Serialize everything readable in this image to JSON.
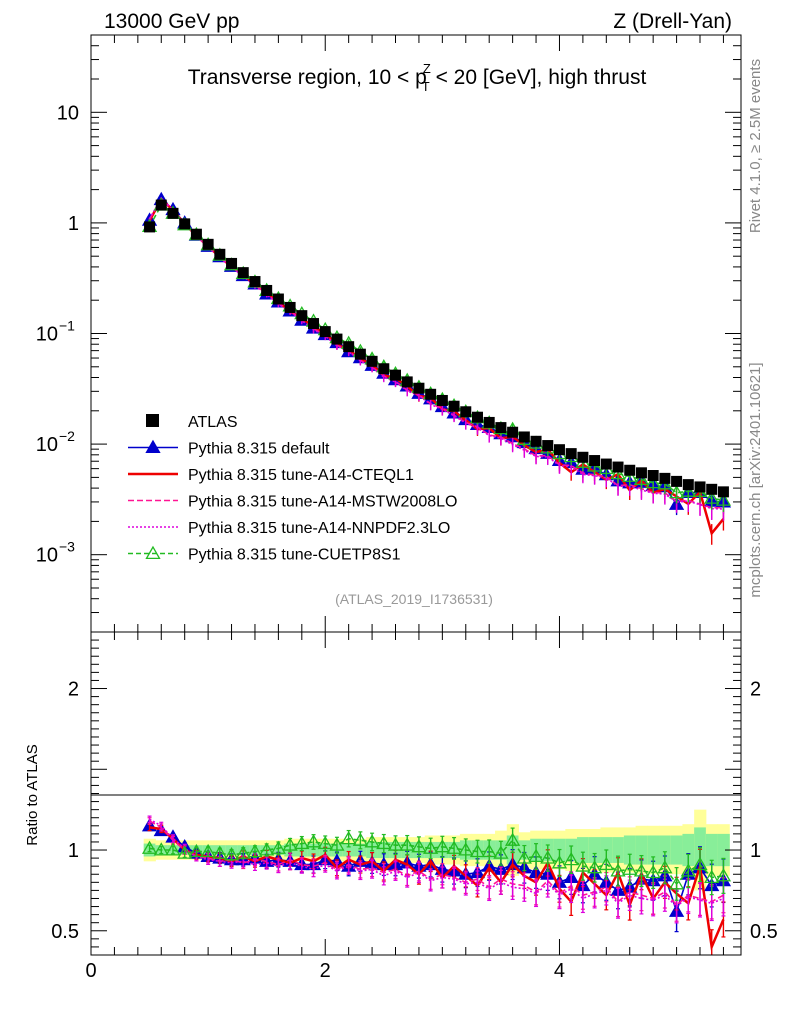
{
  "header": {
    "left": "13000 GeV pp",
    "right": "Z (Drell-Yan)"
  },
  "side_labels": {
    "rivet": "Rivet 4.1.0, ≥ 2.5M events",
    "mcplots": "mcplots.cern.ch [arXiv:2401.10621]"
  },
  "chart_data": [
    {
      "type": "scatter",
      "title": "Transverse region, 10 < p_T^Z < 20 [GeV], high thrust",
      "title_parts": {
        "pre": "Transverse region, 10 < p",
        "sup": "Z",
        "sub": "T",
        "post": " < 20 [GeV], high thrust"
      },
      "analysis_id": "(ATLAS_2019_I1736531)",
      "yscale": "log",
      "ylim": [
        0.0002,
        50
      ],
      "xlim": [
        0,
        5.55
      ],
      "ytick_labels": [
        {
          "value": 10,
          "label": "10"
        },
        {
          "value": 1,
          "label": "1"
        },
        {
          "value": 0.1,
          "base": "10",
          "exp": "−1"
        },
        {
          "value": 0.01,
          "base": "10",
          "exp": "−2"
        },
        {
          "value": 0.001,
          "base": "10",
          "exp": "−3"
        }
      ],
      "x": [
        0.5,
        0.6,
        0.7,
        0.8,
        0.9,
        1.0,
        1.1,
        1.2,
        1.3,
        1.4,
        1.5,
        1.6,
        1.7,
        1.8,
        1.9,
        2.0,
        2.1,
        2.2,
        2.3,
        2.4,
        2.5,
        2.6,
        2.7,
        2.8,
        2.9,
        3.0,
        3.1,
        3.2,
        3.3,
        3.4,
        3.5,
        3.6,
        3.7,
        3.8,
        3.9,
        4.0,
        4.1,
        4.2,
        4.3,
        4.4,
        4.5,
        4.6,
        4.7,
        4.8,
        4.9,
        5.0,
        5.1,
        5.2,
        5.3,
        5.4
      ],
      "legend": [
        "ATLAS",
        "Pythia 8.315 default",
        "Pythia 8.315 tune-A14-CTEQL1",
        "Pythia 8.315 tune-A14-MSTW2008LO",
        "Pythia 8.315 tune-A14-NNPDF2.3LO",
        "Pythia 8.315 tune-CUETP8S1"
      ],
      "data_series": {
        "name": "ATLAS",
        "values": [
          0.92,
          1.45,
          1.22,
          0.98,
          0.79,
          0.64,
          0.52,
          0.43,
          0.355,
          0.295,
          0.245,
          0.205,
          0.172,
          0.145,
          0.123,
          0.104,
          0.089,
          0.076,
          0.065,
          0.056,
          0.048,
          0.042,
          0.0365,
          0.032,
          0.0282,
          0.0248,
          0.022,
          0.0196,
          0.0175,
          0.0157,
          0.0141,
          0.0128,
          0.0116,
          0.0106,
          0.0097,
          0.0089,
          0.0082,
          0.0076,
          0.0071,
          0.0066,
          0.0062,
          0.0058,
          0.0055,
          0.0052,
          0.0049,
          0.0046,
          0.0043,
          0.0041,
          0.0039,
          0.0037
        ]
      }
    },
    {
      "type": "scatter",
      "ylabel": "Ratio to ATLAS",
      "xlabel": "",
      "ylim": [
        0.35,
        2.35
      ],
      "xlim": [
        0,
        5.55
      ],
      "ytick_labels": [
        {
          "value": 2,
          "label": "2"
        },
        {
          "value": 1,
          "label": "1"
        },
        {
          "value": 0.5,
          "label": "0.5"
        }
      ],
      "xtick_labels": [
        {
          "value": 0,
          "label": "0"
        },
        {
          "value": 2,
          "label": "2"
        },
        {
          "value": 4,
          "label": "4"
        }
      ],
      "x": [
        0.5,
        0.6,
        0.7,
        0.8,
        0.9,
        1.0,
        1.1,
        1.2,
        1.3,
        1.4,
        1.5,
        1.6,
        1.7,
        1.8,
        1.9,
        2.0,
        2.1,
        2.2,
        2.3,
        2.4,
        2.5,
        2.6,
        2.7,
        2.8,
        2.9,
        3.0,
        3.1,
        3.2,
        3.3,
        3.4,
        3.5,
        3.6,
        3.7,
        3.8,
        3.9,
        4.0,
        4.1,
        4.2,
        4.3,
        4.4,
        4.5,
        4.6,
        4.7,
        4.8,
        4.9,
        5.0,
        5.1,
        5.2,
        5.3,
        5.4
      ],
      "band_stat": [
        0.04,
        0.03,
        0.03,
        0.03,
        0.03,
        0.03,
        0.03,
        0.03,
        0.03,
        0.03,
        0.03,
        0.03,
        0.04,
        0.04,
        0.04,
        0.04,
        0.04,
        0.04,
        0.04,
        0.05,
        0.05,
        0.05,
        0.05,
        0.05,
        0.05,
        0.05,
        0.05,
        0.06,
        0.06,
        0.06,
        0.06,
        0.09,
        0.06,
        0.07,
        0.07,
        0.07,
        0.07,
        0.08,
        0.08,
        0.08,
        0.08,
        0.09,
        0.09,
        0.09,
        0.09,
        0.09,
        0.1,
        0.14,
        0.1,
        0.1
      ],
      "band_total": [
        0.07,
        0.06,
        0.06,
        0.06,
        0.06,
        0.06,
        0.06,
        0.06,
        0.06,
        0.06,
        0.06,
        0.06,
        0.07,
        0.07,
        0.07,
        0.07,
        0.07,
        0.07,
        0.07,
        0.08,
        0.08,
        0.08,
        0.08,
        0.08,
        0.09,
        0.09,
        0.09,
        0.1,
        0.1,
        0.1,
        0.12,
        0.16,
        0.11,
        0.12,
        0.12,
        0.12,
        0.13,
        0.13,
        0.13,
        0.14,
        0.14,
        0.14,
        0.15,
        0.15,
        0.15,
        0.15,
        0.16,
        0.25,
        0.16,
        0.16
      ],
      "series": [
        {
          "name": "Pythia 8.315 default",
          "color": "#0000cc",
          "dash": "",
          "marker": "triangle-filled",
          "values": [
            1.15,
            1.12,
            1.08,
            1.02,
            0.98,
            0.96,
            0.95,
            0.94,
            0.94,
            0.95,
            0.93,
            0.94,
            0.93,
            0.91,
            0.91,
            0.94,
            0.93,
            0.9,
            0.93,
            0.92,
            0.91,
            0.91,
            0.92,
            0.9,
            0.91,
            0.88,
            0.87,
            0.85,
            0.86,
            0.9,
            0.88,
            0.91,
            0.89,
            0.86,
            0.85,
            0.8,
            0.83,
            0.78,
            0.85,
            0.8,
            0.75,
            0.77,
            0.82,
            0.81,
            0.84,
            0.62,
            0.85,
            0.89,
            0.78,
            0.81
          ]
        },
        {
          "name": "Pythia 8.315 tune-A14-CTEQL1",
          "color": "#ee0000",
          "dash": "",
          "marker": "none",
          "values": [
            1.14,
            1.13,
            1.07,
            1.0,
            0.97,
            0.96,
            0.95,
            0.93,
            0.96,
            0.93,
            0.96,
            0.94,
            0.92,
            0.95,
            0.93,
            0.97,
            0.89,
            0.94,
            0.91,
            0.93,
            0.87,
            0.94,
            0.91,
            0.85,
            0.93,
            0.83,
            0.9,
            0.84,
            0.78,
            0.89,
            0.8,
            0.91,
            0.84,
            0.8,
            0.92,
            0.76,
            0.68,
            0.86,
            0.79,
            0.72,
            0.86,
            0.66,
            0.85,
            0.7,
            0.8,
            0.73,
            0.67,
            0.9,
            0.4,
            0.57
          ]
        },
        {
          "name": "Pythia 8.315 tune-A14-MSTW2008LO",
          "color": "#ff1493",
          "dash": "6,3",
          "marker": "none",
          "values": [
            1.18,
            1.14,
            1.06,
            1.0,
            0.96,
            0.95,
            0.93,
            0.94,
            0.92,
            0.94,
            0.93,
            0.91,
            0.94,
            0.91,
            0.9,
            0.92,
            0.88,
            0.91,
            0.88,
            0.89,
            0.86,
            0.88,
            0.84,
            0.87,
            0.82,
            0.85,
            0.83,
            0.8,
            0.82,
            0.77,
            0.82,
            0.79,
            0.78,
            0.74,
            0.81,
            0.73,
            0.78,
            0.72,
            0.74,
            0.77,
            0.68,
            0.74,
            0.72,
            0.7,
            0.74,
            0.66,
            0.72,
            0.7,
            0.68,
            0.72
          ]
        },
        {
          "name": "Pythia 8.315 tune-A14-NNPDF2.3LO",
          "color": "#dd00dd",
          "dash": "2,2",
          "marker": "none",
          "values": [
            1.19,
            1.15,
            1.07,
            1.01,
            0.96,
            0.94,
            0.93,
            0.92,
            0.93,
            0.91,
            0.92,
            0.9,
            0.92,
            0.9,
            0.88,
            0.91,
            0.87,
            0.9,
            0.87,
            0.88,
            0.84,
            0.87,
            0.83,
            0.86,
            0.81,
            0.83,
            0.82,
            0.79,
            0.8,
            0.76,
            0.8,
            0.77,
            0.76,
            0.73,
            0.79,
            0.72,
            0.76,
            0.7,
            0.73,
            0.75,
            0.67,
            0.72,
            0.7,
            0.69,
            0.72,
            0.65,
            0.71,
            0.69,
            0.67,
            0.7
          ]
        },
        {
          "name": "Pythia 8.315 tune-CUETP8S1",
          "color": "#22bb22",
          "dash": "5,3",
          "marker": "triangle-open",
          "values": [
            1.01,
            1.0,
            1.0,
            0.98,
            0.99,
            0.99,
            0.98,
            0.97,
            0.98,
            0.99,
            1.0,
            1.01,
            1.03,
            1.04,
            1.05,
            1.04,
            1.03,
            1.07,
            1.06,
            1.05,
            1.04,
            1.03,
            1.03,
            1.02,
            1.01,
            1.02,
            1.01,
            1.0,
            0.99,
            0.99,
            0.98,
            1.06,
            0.95,
            0.96,
            0.95,
            0.92,
            0.94,
            0.9,
            0.89,
            0.91,
            0.87,
            0.88,
            0.87,
            0.86,
            0.89,
            0.79,
            0.87,
            0.91,
            0.83,
            0.84
          ]
        }
      ]
    }
  ]
}
